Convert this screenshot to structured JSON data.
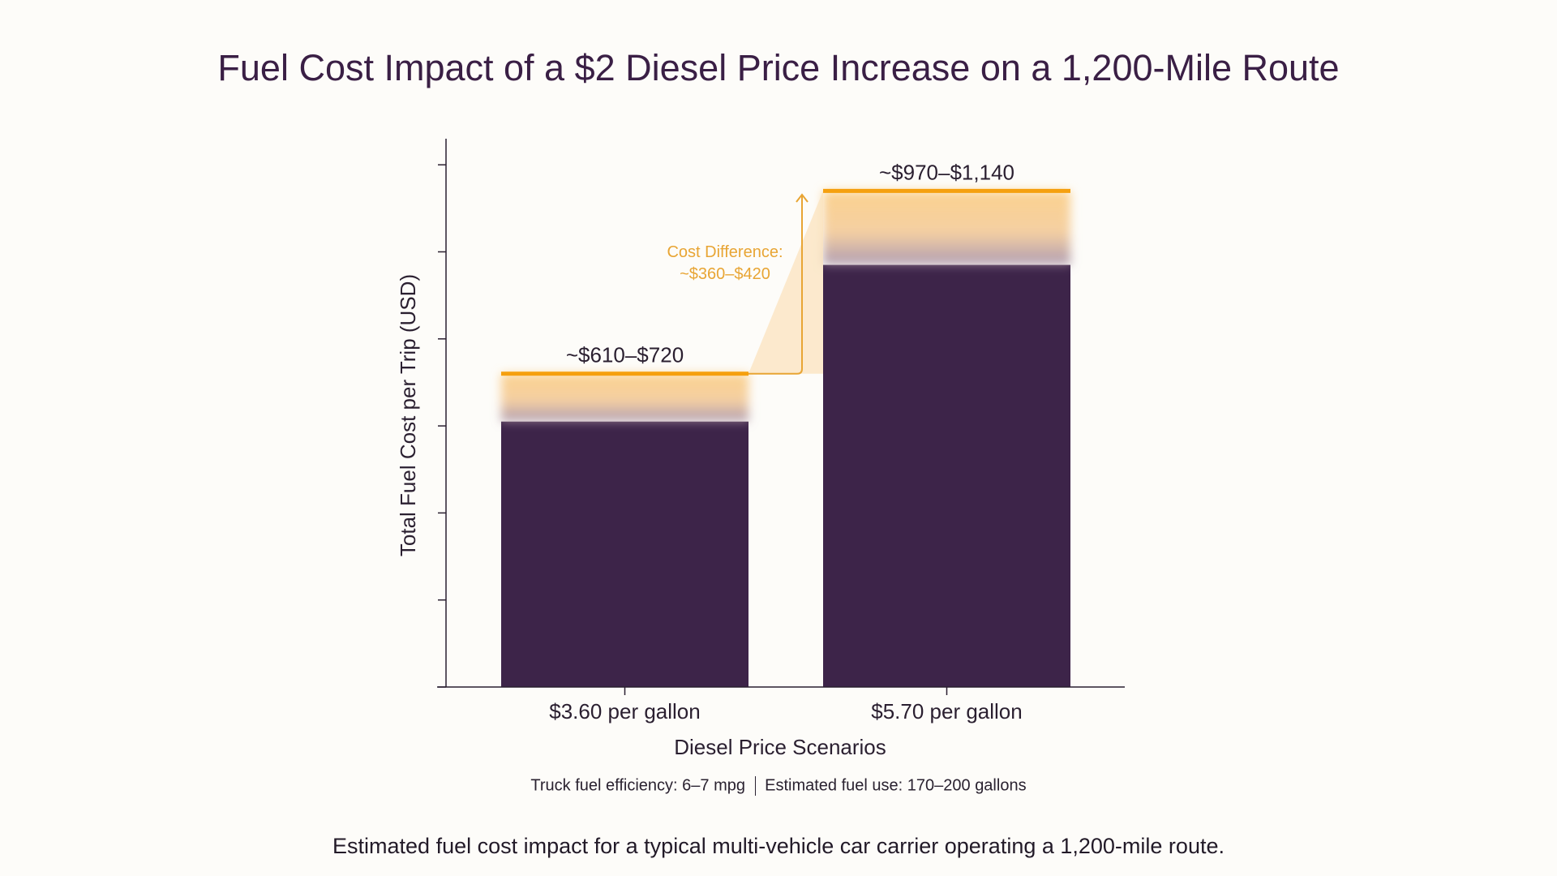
{
  "chart_data": {
    "type": "bar",
    "title": "Fuel Cost Impact of a $2 Diesel Price Increase on a 1,200-Mile Route",
    "xlabel": "Diesel Price Scenarios",
    "ylabel": "Total Fuel Cost per Trip (USD)",
    "categories": [
      "$3.60 per gallon",
      "$5.70 per gallon"
    ],
    "ranges": [
      {
        "low": 610,
        "high": 720,
        "label": "~$610–$720"
      },
      {
        "low": 970,
        "high": 1140,
        "label": "~$970–$1,140"
      }
    ],
    "ylim": [
      0,
      1260
    ],
    "yticks": [
      0,
      200,
      400,
      600,
      800,
      1000,
      1200
    ],
    "ytick_labels_shown": false,
    "grid": false,
    "annotation": {
      "line1": "Cost Difference:",
      "line2": "~$360–$420"
    },
    "colors": {
      "bar": "#3d2449",
      "range_accent": "#f5a00f",
      "annotation": "#e8a534"
    }
  },
  "footnote": {
    "left": "Truck fuel efficiency: 6–7 mpg",
    "right": "Estimated fuel use: 170–200 gallons"
  },
  "caption": "Estimated fuel cost impact for a typical multi-vehicle car carrier operating a 1,200-mile route."
}
